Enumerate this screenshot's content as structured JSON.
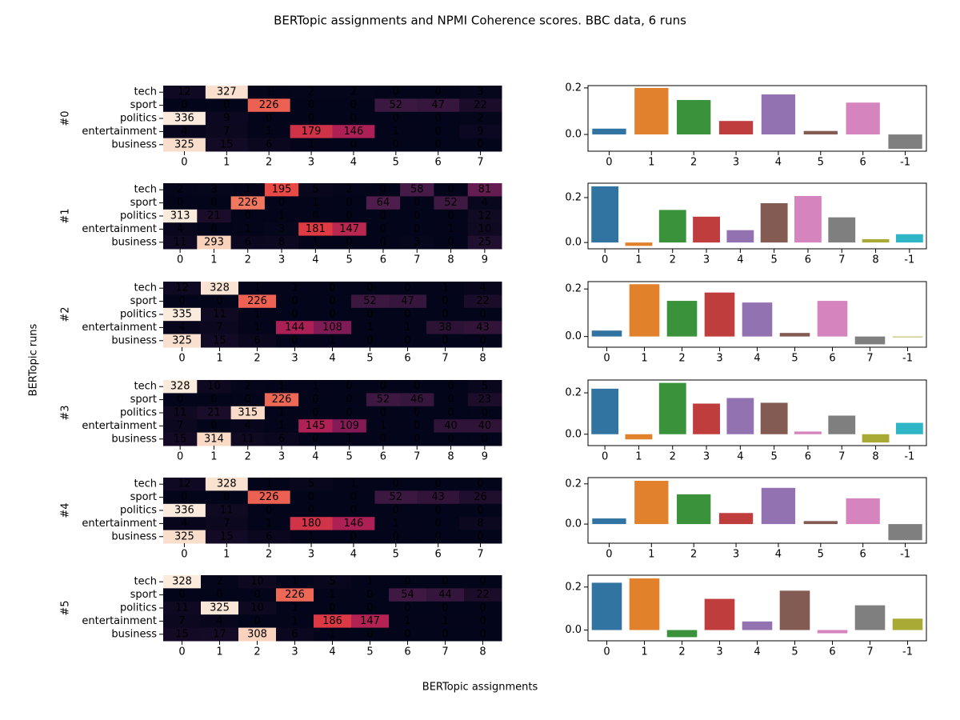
{
  "figure": {
    "title": "BERTopic assignments and NPMI Coherence scores. BBC data, 6 runs",
    "xlabel": "BERTopic assignments",
    "ylabel": "BERTopic runs"
  },
  "chart_data": [
    {
      "type": "heatmap",
      "label": "#0",
      "colormap": "rocket",
      "rows": [
        "tech",
        "sport",
        "politics",
        "entertainment",
        "business"
      ],
      "columns": [
        "0",
        "1",
        "2",
        "3",
        "4",
        "5",
        "6",
        "7"
      ],
      "values": [
        [
          12,
          327,
          1,
          2,
          2,
          0,
          0,
          3
        ],
        [
          0,
          0,
          226,
          0,
          0,
          52,
          47,
          22
        ],
        [
          336,
          9,
          0,
          0,
          0,
          0,
          0,
          2
        ],
        [
          4,
          7,
          1,
          179,
          146,
          1,
          0,
          9
        ],
        [
          325,
          15,
          6,
          1,
          0,
          0,
          0,
          0
        ]
      ]
    },
    {
      "type": "bar",
      "categories": [
        "0",
        "1",
        "2",
        "3",
        "4",
        "5",
        "6",
        "-1"
      ],
      "values": [
        0.025,
        0.2,
        0.148,
        0.058,
        0.172,
        0.015,
        0.137,
        -0.062
      ],
      "colors": [
        "#3274a1",
        "#e1812c",
        "#3a923a",
        "#c03d3e",
        "#9372b2",
        "#845b53",
        "#d684bd",
        "#7f7f7f"
      ],
      "ylim": [
        -0.072,
        0.21
      ],
      "yticks": [
        {
          "value": 0,
          "label": "0.0"
        },
        {
          "value": 0.2,
          "label": "0.2"
        }
      ]
    },
    {
      "type": "heatmap",
      "label": "#1",
      "colormap": "rocket",
      "rows": [
        "tech",
        "sport",
        "politics",
        "entertainment",
        "business"
      ],
      "columns": [
        "0",
        "1",
        "2",
        "3",
        "4",
        "5",
        "6",
        "7",
        "8",
        "9"
      ],
      "values": [
        [
          2,
          3,
          1,
          195,
          5,
          2,
          0,
          58,
          0,
          81
        ],
        [
          0,
          0,
          226,
          0,
          1,
          0,
          64,
          0,
          52,
          4
        ],
        [
          313,
          21,
          0,
          1,
          0,
          0,
          0,
          0,
          0,
          12
        ],
        [
          4,
          0,
          1,
          3,
          181,
          147,
          0,
          0,
          1,
          10
        ],
        [
          11,
          293,
          6,
          8,
          1,
          0,
          0,
          3,
          0,
          25
        ]
      ]
    },
    {
      "type": "bar",
      "categories": [
        "0",
        "1",
        "2",
        "3",
        "4",
        "5",
        "6",
        "7",
        "8",
        "-1"
      ],
      "values": [
        0.25,
        -0.015,
        0.145,
        0.115,
        0.055,
        0.175,
        0.207,
        0.112,
        0.015,
        0.037
      ],
      "colors": [
        "#3274a1",
        "#e1812c",
        "#3a923a",
        "#c03d3e",
        "#9372b2",
        "#845b53",
        "#d684bd",
        "#7f7f7f",
        "#a9aa35",
        "#2eb6c6"
      ],
      "ylim": [
        -0.028,
        0.264
      ],
      "yticks": [
        {
          "value": 0,
          "label": "0.0"
        },
        {
          "value": 0.2,
          "label": "0.2"
        }
      ]
    },
    {
      "type": "heatmap",
      "label": "#2",
      "colormap": "rocket",
      "rows": [
        "tech",
        "sport",
        "politics",
        "entertainment",
        "business"
      ],
      "columns": [
        "0",
        "1",
        "2",
        "3",
        "4",
        "5",
        "6",
        "7",
        "8"
      ],
      "values": [
        [
          12,
          328,
          1,
          1,
          0,
          0,
          0,
          1,
          4
        ],
        [
          0,
          0,
          226,
          0,
          0,
          52,
          47,
          0,
          22
        ],
        [
          335,
          11,
          1,
          0,
          0,
          0,
          0,
          0,
          0
        ],
        [
          4,
          7,
          1,
          144,
          108,
          1,
          1,
          38,
          43
        ],
        [
          325,
          15,
          6,
          0,
          1,
          0,
          0,
          0,
          0
        ]
      ]
    },
    {
      "type": "bar",
      "categories": [
        "0",
        "1",
        "2",
        "3",
        "4",
        "5",
        "6",
        "7",
        "-1"
      ],
      "values": [
        0.025,
        0.22,
        0.15,
        0.185,
        0.143,
        0.015,
        0.15,
        -0.033,
        -0.003
      ],
      "colors": [
        "#3274a1",
        "#e1812c",
        "#3a923a",
        "#c03d3e",
        "#9372b2",
        "#845b53",
        "#d684bd",
        "#7f7f7f",
        "#a9aa35"
      ],
      "ylim": [
        -0.045,
        0.231
      ],
      "yticks": [
        {
          "value": 0,
          "label": "0.0"
        },
        {
          "value": 0.2,
          "label": "0.2"
        }
      ]
    },
    {
      "type": "heatmap",
      "label": "#3",
      "colormap": "rocket",
      "rows": [
        "tech",
        "sport",
        "politics",
        "entertainment",
        "business"
      ],
      "columns": [
        "0",
        "1",
        "2",
        "3",
        "4",
        "5",
        "6",
        "7",
        "8",
        "9"
      ],
      "values": [
        [
          328,
          10,
          2,
          1,
          1,
          0,
          0,
          0,
          0,
          5
        ],
        [
          0,
          0,
          0,
          226,
          0,
          0,
          52,
          46,
          0,
          23
        ],
        [
          11,
          21,
          315,
          1,
          0,
          0,
          0,
          0,
          0,
          0
        ],
        [
          7,
          0,
          4,
          1,
          145,
          109,
          1,
          0,
          40,
          40
        ],
        [
          15,
          314,
          11,
          6,
          0,
          1,
          0,
          0,
          0,
          0
        ]
      ]
    },
    {
      "type": "bar",
      "categories": [
        "0",
        "1",
        "2",
        "3",
        "4",
        "5",
        "6",
        "7",
        "8",
        "-1"
      ],
      "values": [
        0.22,
        -0.025,
        0.248,
        0.148,
        0.175,
        0.152,
        0.013,
        0.09,
        -0.04,
        0.055
      ],
      "colors": [
        "#3274a1",
        "#e1812c",
        "#3a923a",
        "#c03d3e",
        "#9372b2",
        "#845b53",
        "#d684bd",
        "#7f7f7f",
        "#a9aa35",
        "#2eb6c6"
      ],
      "ylim": [
        -0.055,
        0.262
      ],
      "yticks": [
        {
          "value": 0,
          "label": "0.0"
        },
        {
          "value": 0.2,
          "label": "0.2"
        }
      ]
    },
    {
      "type": "heatmap",
      "label": "#4",
      "colormap": "rocket",
      "rows": [
        "tech",
        "sport",
        "politics",
        "entertainment",
        "business"
      ],
      "columns": [
        "0",
        "1",
        "2",
        "3",
        "4",
        "5",
        "6",
        "7"
      ],
      "values": [
        [
          12,
          328,
          1,
          5,
          1,
          0,
          0,
          0
        ],
        [
          0,
          0,
          226,
          0,
          0,
          52,
          43,
          26
        ],
        [
          336,
          11,
          0,
          0,
          0,
          0,
          0,
          0
        ],
        [
          4,
          7,
          1,
          180,
          146,
          1,
          0,
          8
        ],
        [
          325,
          15,
          6,
          1,
          0,
          0,
          0,
          0
        ]
      ]
    },
    {
      "type": "bar",
      "categories": [
        "0",
        "1",
        "2",
        "3",
        "4",
        "5",
        "6",
        "-1"
      ],
      "values": [
        0.028,
        0.215,
        0.148,
        0.055,
        0.18,
        0.015,
        0.128,
        -0.08
      ],
      "colors": [
        "#3274a1",
        "#e1812c",
        "#3a923a",
        "#c03d3e",
        "#9372b2",
        "#845b53",
        "#d684bd",
        "#7f7f7f"
      ],
      "ylim": [
        -0.095,
        0.231
      ],
      "yticks": [
        {
          "value": 0,
          "label": "0.0"
        },
        {
          "value": 0.2,
          "label": "0.2"
        }
      ]
    },
    {
      "type": "heatmap",
      "label": "#5",
      "colormap": "rocket",
      "rows": [
        "tech",
        "sport",
        "politics",
        "entertainment",
        "business"
      ],
      "columns": [
        "0",
        "1",
        "2",
        "3",
        "4",
        "5",
        "6",
        "7",
        "8"
      ],
      "values": [
        [
          328,
          2,
          10,
          1,
          5,
          1,
          0,
          0,
          0
        ],
        [
          0,
          0,
          0,
          226,
          1,
          0,
          54,
          44,
          22
        ],
        [
          11,
          325,
          10,
          1,
          0,
          0,
          0,
          0,
          0
        ],
        [
          7,
          4,
          0,
          1,
          186,
          147,
          1,
          1,
          0
        ],
        [
          15,
          17,
          308,
          6,
          1,
          0,
          0,
          0,
          0
        ]
      ]
    },
    {
      "type": "bar",
      "categories": [
        "0",
        "1",
        "2",
        "3",
        "4",
        "5",
        "6",
        "7",
        "-1"
      ],
      "values": [
        0.22,
        0.24,
        -0.033,
        0.145,
        0.04,
        0.183,
        -0.015,
        0.115,
        0.053
      ],
      "colors": [
        "#3274a1",
        "#e1812c",
        "#3a923a",
        "#c03d3e",
        "#9372b2",
        "#845b53",
        "#d684bd",
        "#7f7f7f",
        "#a9aa35"
      ],
      "ylim": [
        -0.05,
        0.255
      ],
      "yticks": [
        {
          "value": 0,
          "label": "0.0"
        },
        {
          "value": 0.2,
          "label": "0.2"
        }
      ]
    }
  ]
}
